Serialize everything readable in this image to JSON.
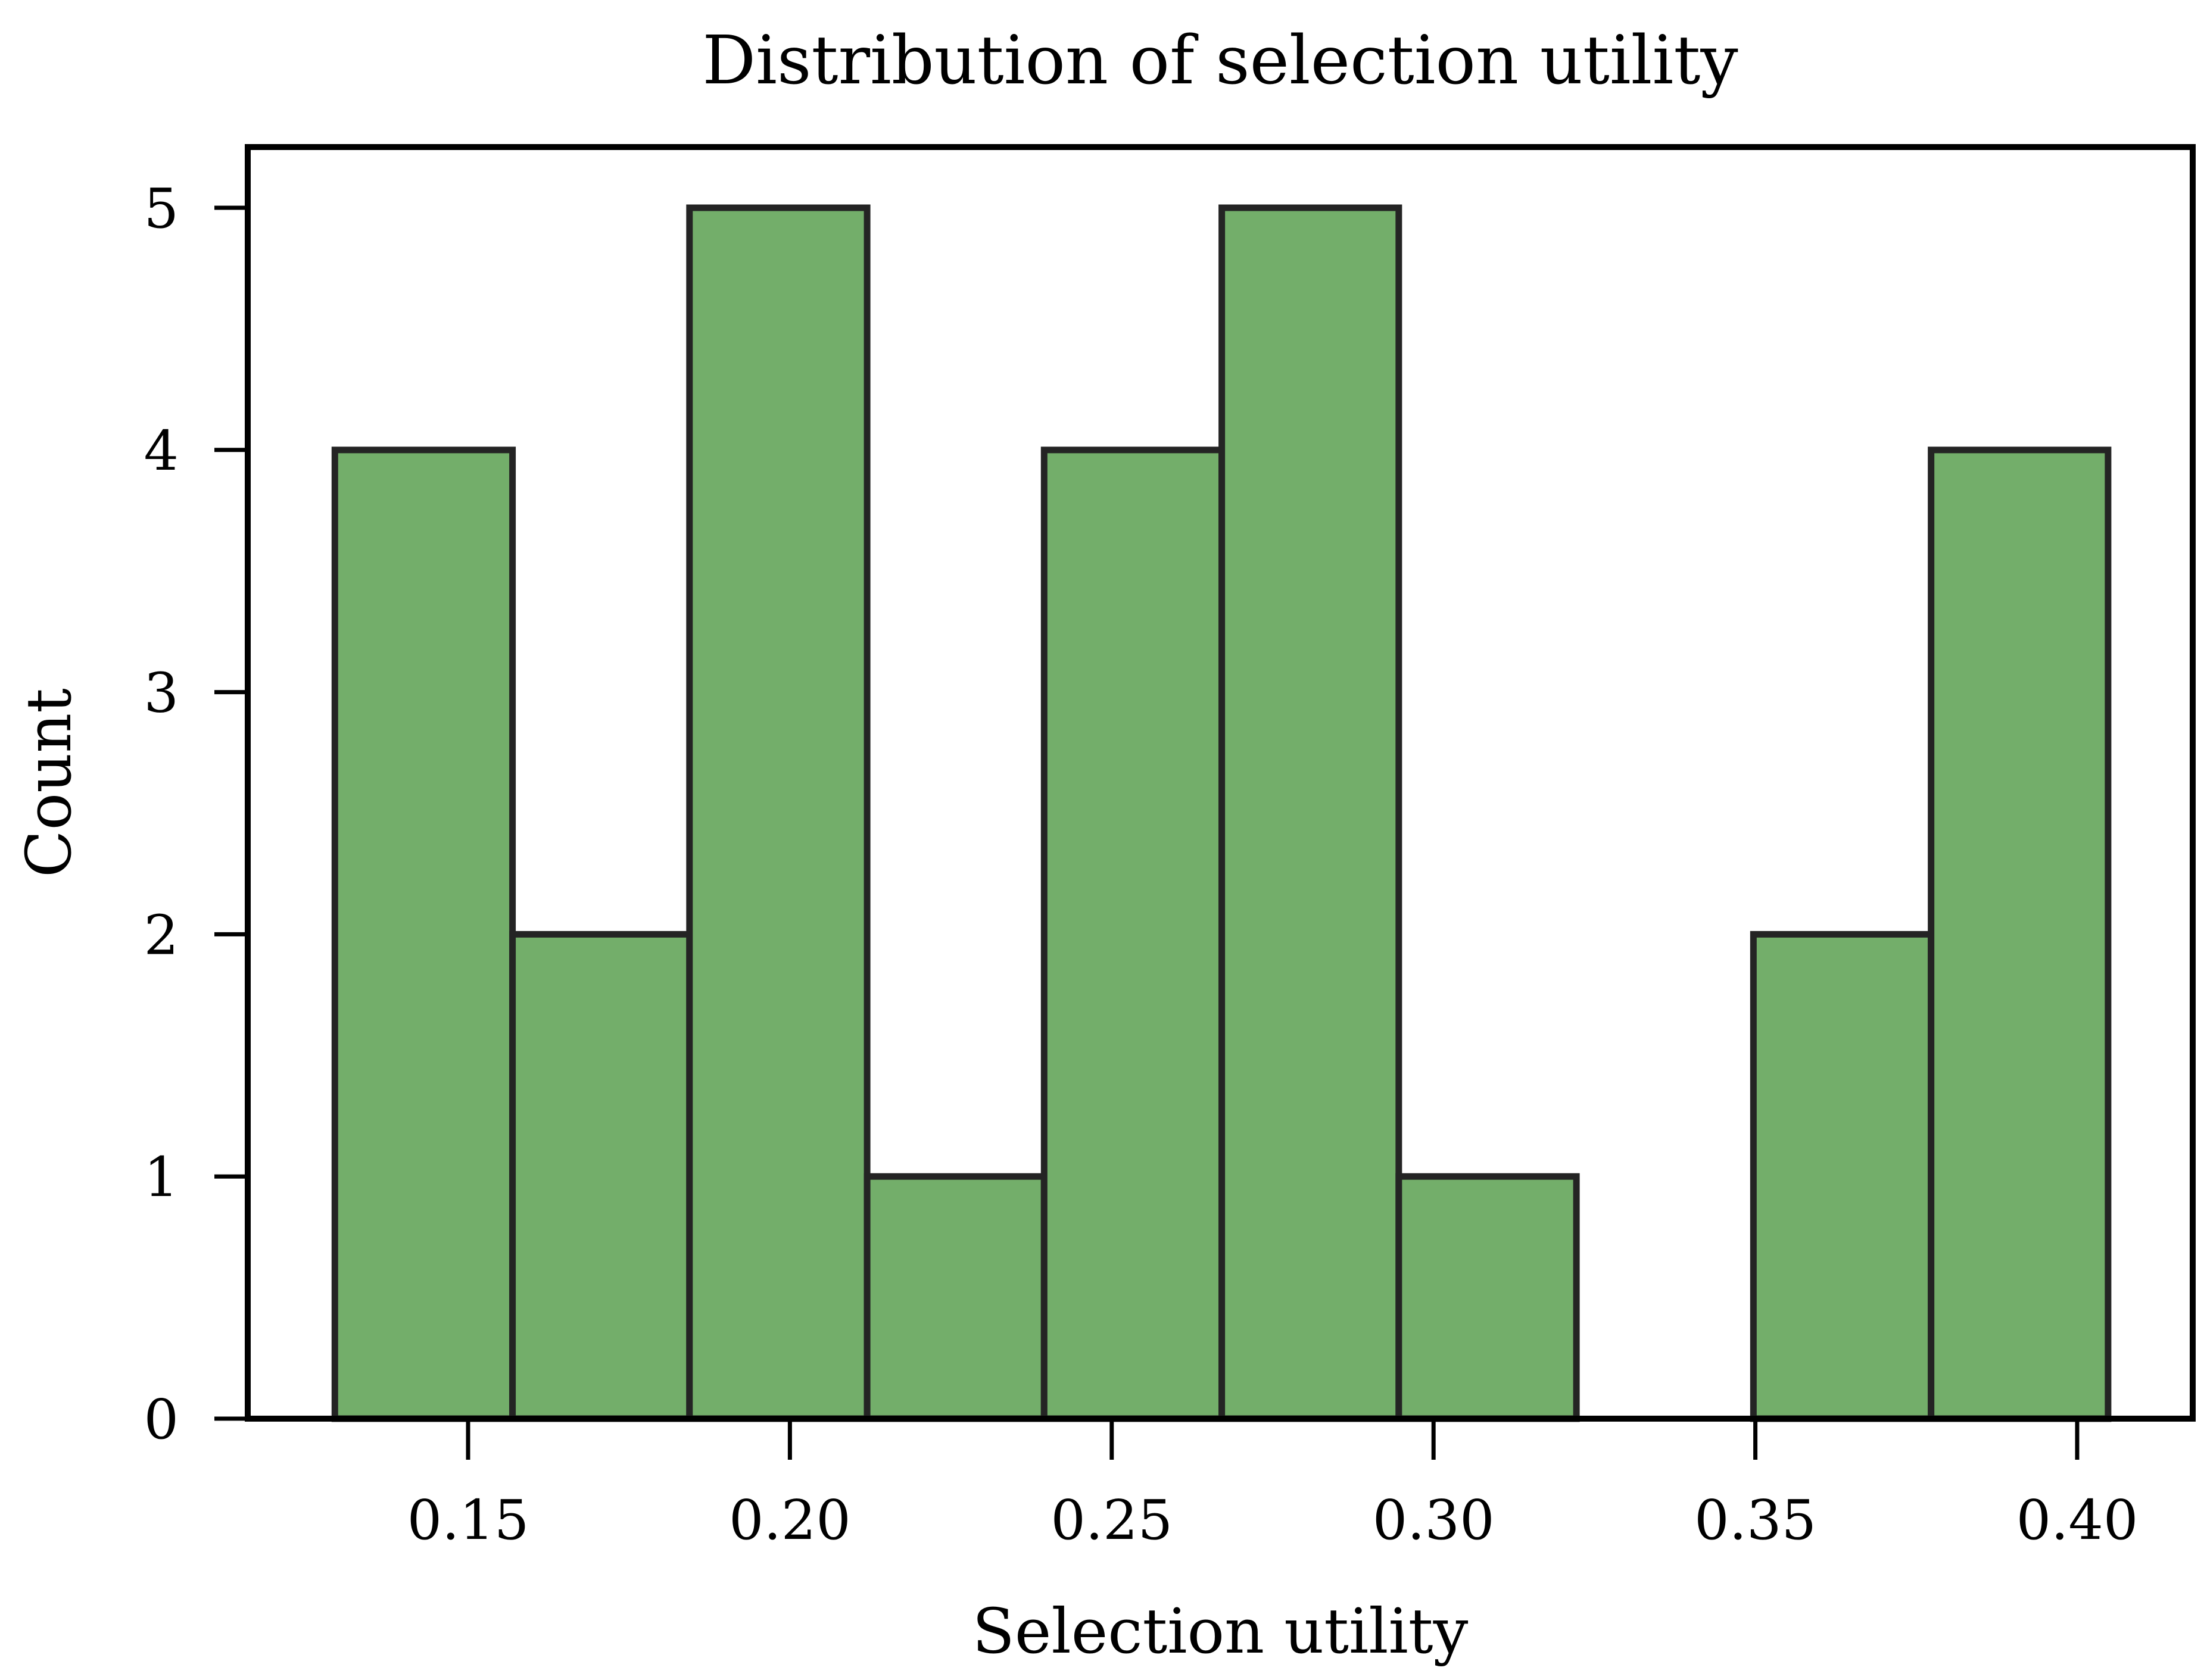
{
  "chart_data": {
    "type": "bar",
    "subtype": "histogram",
    "title": "Distribution of selection utility",
    "xlabel": "Selection utility",
    "ylabel": "Count",
    "xlim": [
      0.115,
      0.416
    ],
    "ylim": [
      0,
      5.26
    ],
    "xticks": [
      0.15,
      0.2,
      0.25,
      0.3,
      0.35,
      0.4
    ],
    "xtick_labels": [
      "0.15",
      "0.20",
      "0.25",
      "0.30",
      "0.35",
      "0.40"
    ],
    "yticks": [
      0,
      1,
      2,
      3,
      4,
      5
    ],
    "ytick_labels": [
      "0",
      "1",
      "2",
      "3",
      "4",
      "5"
    ],
    "bin_edges": [
      0.1293,
      0.1569,
      0.1844,
      0.212,
      0.2395,
      0.2671,
      0.2946,
      0.3222,
      0.3497,
      0.3773,
      0.4048
    ],
    "categories": [
      "0.129-0.157",
      "0.157-0.184",
      "0.184-0.212",
      "0.212-0.240",
      "0.240-0.267",
      "0.267-0.295",
      "0.295-0.322",
      "0.322-0.350",
      "0.350-0.377",
      "0.377-0.405"
    ],
    "values": [
      4,
      2,
      5,
      1,
      4,
      5,
      1,
      0,
      2,
      4
    ],
    "grid": false,
    "legend": null,
    "colors": {
      "bar_fill": "#73ae6a",
      "bar_edge": "#242424",
      "axes": "#000000",
      "background": "#ffffff"
    }
  }
}
